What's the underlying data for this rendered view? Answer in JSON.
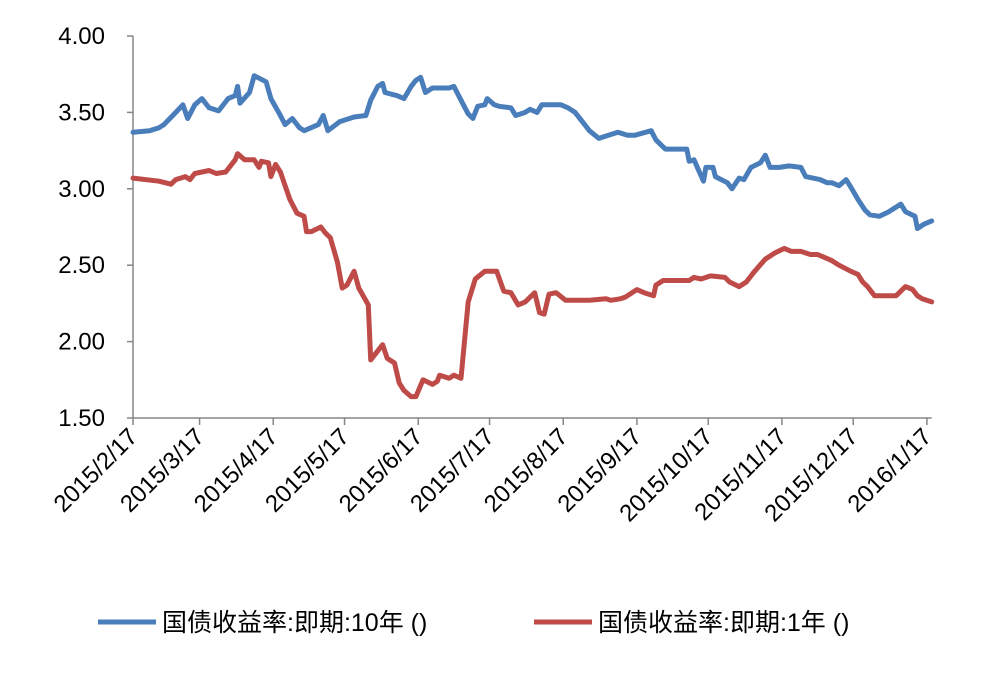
{
  "chart_data": {
    "type": "line",
    "title": "",
    "xlabel": "",
    "ylabel": "",
    "ylim": [
      1.5,
      4.0
    ],
    "yticks": [
      "1.50",
      "2.00",
      "2.50",
      "3.00",
      "3.50",
      "4.00"
    ],
    "xticks": [
      "2015/2/17",
      "2015/3/17",
      "2015/4/17",
      "2015/5/17",
      "2015/6/17",
      "2015/7/17",
      "2015/8/17",
      "2015/9/17",
      "2015/10/17",
      "2015/11/17",
      "2015/12/17",
      "2016/1/17"
    ],
    "xrange": [
      "2015-02-17",
      "2016-01-19"
    ],
    "grid": false,
    "legend_position": "bottom",
    "series": [
      {
        "name": "国债收益率:即期:10年 ()",
        "color": "#4A7EBB",
        "points": [
          [
            "2015-02-17",
            3.37
          ],
          [
            "2015-02-24",
            3.38
          ],
          [
            "2015-02-28",
            3.4
          ],
          [
            "2015-03-02",
            3.42
          ],
          [
            "2015-03-07",
            3.5
          ],
          [
            "2015-03-10",
            3.55
          ],
          [
            "2015-03-12",
            3.46
          ],
          [
            "2015-03-15",
            3.55
          ],
          [
            "2015-03-18",
            3.59
          ],
          [
            "2015-03-21",
            3.53
          ],
          [
            "2015-03-25",
            3.51
          ],
          [
            "2015-03-29",
            3.59
          ],
          [
            "2015-04-01",
            3.61
          ],
          [
            "2015-04-02",
            3.67
          ],
          [
            "2015-04-03",
            3.56
          ],
          [
            "2015-04-07",
            3.63
          ],
          [
            "2015-04-09",
            3.74
          ],
          [
            "2015-04-14",
            3.7
          ],
          [
            "2015-04-16",
            3.59
          ],
          [
            "2015-04-20",
            3.48
          ],
          [
            "2015-04-22",
            3.42
          ],
          [
            "2015-04-25",
            3.46
          ],
          [
            "2015-04-28",
            3.4
          ],
          [
            "2015-04-30",
            3.38
          ],
          [
            "2015-05-06",
            3.42
          ],
          [
            "2015-05-08",
            3.48
          ],
          [
            "2015-05-10",
            3.38
          ],
          [
            "2015-05-15",
            3.44
          ],
          [
            "2015-05-21",
            3.47
          ],
          [
            "2015-05-26",
            3.48
          ],
          [
            "2015-05-28",
            3.58
          ],
          [
            "2015-05-31",
            3.67
          ],
          [
            "2015-06-02",
            3.69
          ],
          [
            "2015-06-03",
            3.63
          ],
          [
            "2015-06-08",
            3.61
          ],
          [
            "2015-06-11",
            3.59
          ],
          [
            "2015-06-14",
            3.67
          ],
          [
            "2015-06-16",
            3.71
          ],
          [
            "2015-06-18",
            3.73
          ],
          [
            "2015-06-20",
            3.63
          ],
          [
            "2015-06-23",
            3.66
          ],
          [
            "2015-06-30",
            3.66
          ],
          [
            "2015-07-02",
            3.67
          ],
          [
            "2015-07-05",
            3.58
          ],
          [
            "2015-07-08",
            3.49
          ],
          [
            "2015-07-10",
            3.46
          ],
          [
            "2015-07-12",
            3.54
          ],
          [
            "2015-07-15",
            3.55
          ],
          [
            "2015-07-16",
            3.59
          ],
          [
            "2015-07-19",
            3.55
          ],
          [
            "2015-07-21",
            3.54
          ],
          [
            "2015-07-26",
            3.53
          ],
          [
            "2015-07-28",
            3.48
          ],
          [
            "2015-08-01",
            3.5
          ],
          [
            "2015-08-03",
            3.52
          ],
          [
            "2015-08-06",
            3.5
          ],
          [
            "2015-08-08",
            3.55
          ],
          [
            "2015-08-11",
            3.55
          ],
          [
            "2015-08-16",
            3.55
          ],
          [
            "2015-08-19",
            3.53
          ],
          [
            "2015-08-22",
            3.5
          ],
          [
            "2015-08-25",
            3.44
          ],
          [
            "2015-08-28",
            3.38
          ],
          [
            "2015-09-01",
            3.33
          ],
          [
            "2015-09-05",
            3.35
          ],
          [
            "2015-09-09",
            3.37
          ],
          [
            "2015-09-13",
            3.35
          ],
          [
            "2015-09-16",
            3.35
          ],
          [
            "2015-09-23",
            3.38
          ],
          [
            "2015-09-25",
            3.32
          ],
          [
            "2015-09-29",
            3.26
          ],
          [
            "2015-10-05",
            3.26
          ],
          [
            "2015-10-08",
            3.26
          ],
          [
            "2015-10-09",
            3.18
          ],
          [
            "2015-10-11",
            3.19
          ],
          [
            "2015-10-13",
            3.12
          ],
          [
            "2015-10-15",
            3.05
          ],
          [
            "2015-10-16",
            3.14
          ],
          [
            "2015-10-19",
            3.14
          ],
          [
            "2015-10-20",
            3.08
          ],
          [
            "2015-10-25",
            3.04
          ],
          [
            "2015-10-27",
            3.0
          ],
          [
            "2015-10-30",
            3.07
          ],
          [
            "2015-11-01",
            3.06
          ],
          [
            "2015-11-04",
            3.14
          ],
          [
            "2015-11-08",
            3.17
          ],
          [
            "2015-11-10",
            3.22
          ],
          [
            "2015-11-12",
            3.14
          ],
          [
            "2015-11-16",
            3.14
          ],
          [
            "2015-11-20",
            3.15
          ],
          [
            "2015-11-25",
            3.14
          ],
          [
            "2015-11-27",
            3.08
          ],
          [
            "2015-11-30",
            3.07
          ],
          [
            "2015-12-03",
            3.06
          ],
          [
            "2015-12-06",
            3.04
          ],
          [
            "2015-12-08",
            3.04
          ],
          [
            "2015-12-11",
            3.02
          ],
          [
            "2015-12-14",
            3.06
          ],
          [
            "2015-12-16",
            3.01
          ],
          [
            "2015-12-19",
            2.93
          ],
          [
            "2015-12-22",
            2.86
          ],
          [
            "2015-12-24",
            2.83
          ],
          [
            "2015-12-28",
            2.82
          ],
          [
            "2016-01-01",
            2.85
          ],
          [
            "2016-01-06",
            2.9
          ],
          [
            "2016-01-08",
            2.85
          ],
          [
            "2016-01-12",
            2.82
          ],
          [
            "2016-01-13",
            2.74
          ],
          [
            "2016-01-16",
            2.77
          ],
          [
            "2016-01-19",
            2.79
          ]
        ]
      },
      {
        "name": "国债收益率:即期:1年 ()",
        "color": "#BE4B48",
        "points": [
          [
            "2015-02-17",
            3.07
          ],
          [
            "2015-02-28",
            3.05
          ],
          [
            "2015-03-05",
            3.03
          ],
          [
            "2015-03-07",
            3.06
          ],
          [
            "2015-03-11",
            3.08
          ],
          [
            "2015-03-13",
            3.06
          ],
          [
            "2015-03-15",
            3.1
          ],
          [
            "2015-03-21",
            3.12
          ],
          [
            "2015-03-24",
            3.1
          ],
          [
            "2015-03-28",
            3.11
          ],
          [
            "2015-04-01",
            3.19
          ],
          [
            "2015-04-02",
            3.23
          ],
          [
            "2015-04-05",
            3.19
          ],
          [
            "2015-04-09",
            3.19
          ],
          [
            "2015-04-11",
            3.14
          ],
          [
            "2015-04-12",
            3.18
          ],
          [
            "2015-04-15",
            3.17
          ],
          [
            "2015-04-16",
            3.08
          ],
          [
            "2015-04-18",
            3.16
          ],
          [
            "2015-04-20",
            3.11
          ],
          [
            "2015-04-22",
            3.02
          ],
          [
            "2015-04-24",
            2.93
          ],
          [
            "2015-04-27",
            2.84
          ],
          [
            "2015-04-30",
            2.82
          ],
          [
            "2015-05-01",
            2.72
          ],
          [
            "2015-05-03",
            2.72
          ],
          [
            "2015-05-07",
            2.75
          ],
          [
            "2015-05-09",
            2.71
          ],
          [
            "2015-05-11",
            2.68
          ],
          [
            "2015-05-14",
            2.52
          ],
          [
            "2015-05-16",
            2.35
          ],
          [
            "2015-05-18",
            2.37
          ],
          [
            "2015-05-21",
            2.46
          ],
          [
            "2015-05-23",
            2.35
          ],
          [
            "2015-05-27",
            2.24
          ],
          [
            "2015-05-28",
            1.88
          ],
          [
            "2015-05-31",
            1.94
          ],
          [
            "2015-06-02",
            1.98
          ],
          [
            "2015-06-04",
            1.89
          ],
          [
            "2015-06-07",
            1.86
          ],
          [
            "2015-06-09",
            1.73
          ],
          [
            "2015-06-11",
            1.68
          ],
          [
            "2015-06-14",
            1.64
          ],
          [
            "2015-06-16",
            1.64
          ],
          [
            "2015-06-19",
            1.75
          ],
          [
            "2015-06-23",
            1.72
          ],
          [
            "2015-06-25",
            1.74
          ],
          [
            "2015-06-26",
            1.78
          ],
          [
            "2015-06-30",
            1.76
          ],
          [
            "2015-07-02",
            1.78
          ],
          [
            "2015-07-05",
            1.76
          ],
          [
            "2015-07-08",
            2.26
          ],
          [
            "2015-07-11",
            2.41
          ],
          [
            "2015-07-15",
            2.46
          ],
          [
            "2015-07-20",
            2.46
          ],
          [
            "2015-07-23",
            2.33
          ],
          [
            "2015-07-26",
            2.32
          ],
          [
            "2015-07-29",
            2.24
          ],
          [
            "2015-08-01",
            2.26
          ],
          [
            "2015-08-05",
            2.32
          ],
          [
            "2015-08-07",
            2.19
          ],
          [
            "2015-08-09",
            2.18
          ],
          [
            "2015-08-11",
            2.31
          ],
          [
            "2015-08-14",
            2.32
          ],
          [
            "2015-08-18",
            2.27
          ],
          [
            "2015-08-24",
            2.27
          ],
          [
            "2015-08-28",
            2.27
          ],
          [
            "2015-09-04",
            2.28
          ],
          [
            "2015-09-06",
            2.27
          ],
          [
            "2015-09-10",
            2.28
          ],
          [
            "2015-09-12",
            2.29
          ],
          [
            "2015-09-17",
            2.34
          ],
          [
            "2015-09-20",
            2.32
          ],
          [
            "2015-09-24",
            2.3
          ],
          [
            "2015-09-25",
            2.37
          ],
          [
            "2015-09-28",
            2.4
          ],
          [
            "2015-10-09",
            2.4
          ],
          [
            "2015-10-11",
            2.42
          ],
          [
            "2015-10-14",
            2.41
          ],
          [
            "2015-10-18",
            2.43
          ],
          [
            "2015-10-24",
            2.42
          ],
          [
            "2015-10-26",
            2.39
          ],
          [
            "2015-10-30",
            2.36
          ],
          [
            "2015-11-02",
            2.39
          ],
          [
            "2015-11-05",
            2.45
          ],
          [
            "2015-11-10",
            2.54
          ],
          [
            "2015-11-14",
            2.58
          ],
          [
            "2015-11-18",
            2.61
          ],
          [
            "2015-11-21",
            2.59
          ],
          [
            "2015-11-25",
            2.59
          ],
          [
            "2015-11-29",
            2.57
          ],
          [
            "2015-12-02",
            2.57
          ],
          [
            "2015-12-08",
            2.53
          ],
          [
            "2015-12-11",
            2.5
          ],
          [
            "2015-12-16",
            2.46
          ],
          [
            "2015-12-19",
            2.44
          ],
          [
            "2015-12-21",
            2.39
          ],
          [
            "2015-12-23",
            2.36
          ],
          [
            "2015-12-26",
            2.3
          ],
          [
            "2015-12-28",
            2.3
          ],
          [
            "2016-01-04",
            2.3
          ],
          [
            "2016-01-08",
            2.36
          ],
          [
            "2016-01-11",
            2.34
          ],
          [
            "2016-01-13",
            2.3
          ],
          [
            "2016-01-15",
            2.28
          ],
          [
            "2016-01-19",
            2.26
          ]
        ]
      }
    ]
  }
}
